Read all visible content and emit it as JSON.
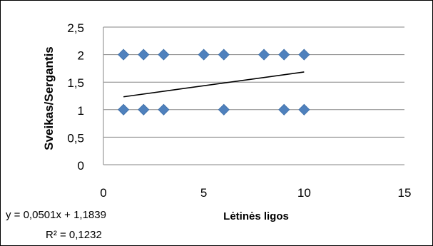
{
  "chart_data": {
    "type": "scatter",
    "title": "",
    "xlabel": "Lėtinės ligos",
    "ylabel": "Sveikas/Sergantis",
    "xlim": [
      0,
      15
    ],
    "ylim": [
      0,
      2.5
    ],
    "x_ticks": [
      0,
      5,
      10,
      15
    ],
    "x_tick_labels": [
      "0",
      "5",
      "10",
      "15"
    ],
    "y_ticks": [
      0,
      0.5,
      1,
      1.5,
      2,
      2.5
    ],
    "y_tick_labels": [
      "0",
      "0,5",
      "1",
      "1,5",
      "2",
      "2,5"
    ],
    "grid": "horizontal",
    "legend": "none",
    "points": [
      {
        "x": 1,
        "y": 2
      },
      {
        "x": 2,
        "y": 2
      },
      {
        "x": 3,
        "y": 2
      },
      {
        "x": 5,
        "y": 2
      },
      {
        "x": 6,
        "y": 2
      },
      {
        "x": 8,
        "y": 2
      },
      {
        "x": 9,
        "y": 2
      },
      {
        "x": 10,
        "y": 2
      },
      {
        "x": 1,
        "y": 1
      },
      {
        "x": 2,
        "y": 1
      },
      {
        "x": 3,
        "y": 1
      },
      {
        "x": 6,
        "y": 1
      },
      {
        "x": 9,
        "y": 1
      },
      {
        "x": 10,
        "y": 1
      }
    ],
    "trendline": {
      "type": "linear",
      "slope": 0.0501,
      "intercept": 1.1839,
      "x_range": [
        1,
        10
      ],
      "equation_label": "y = 0,0501x + 1,1839",
      "r2_label": "R² = 0,1232"
    },
    "colors": {
      "marker": "#4f81bd",
      "trendline": "#000000",
      "gridline": "#868686"
    }
  }
}
